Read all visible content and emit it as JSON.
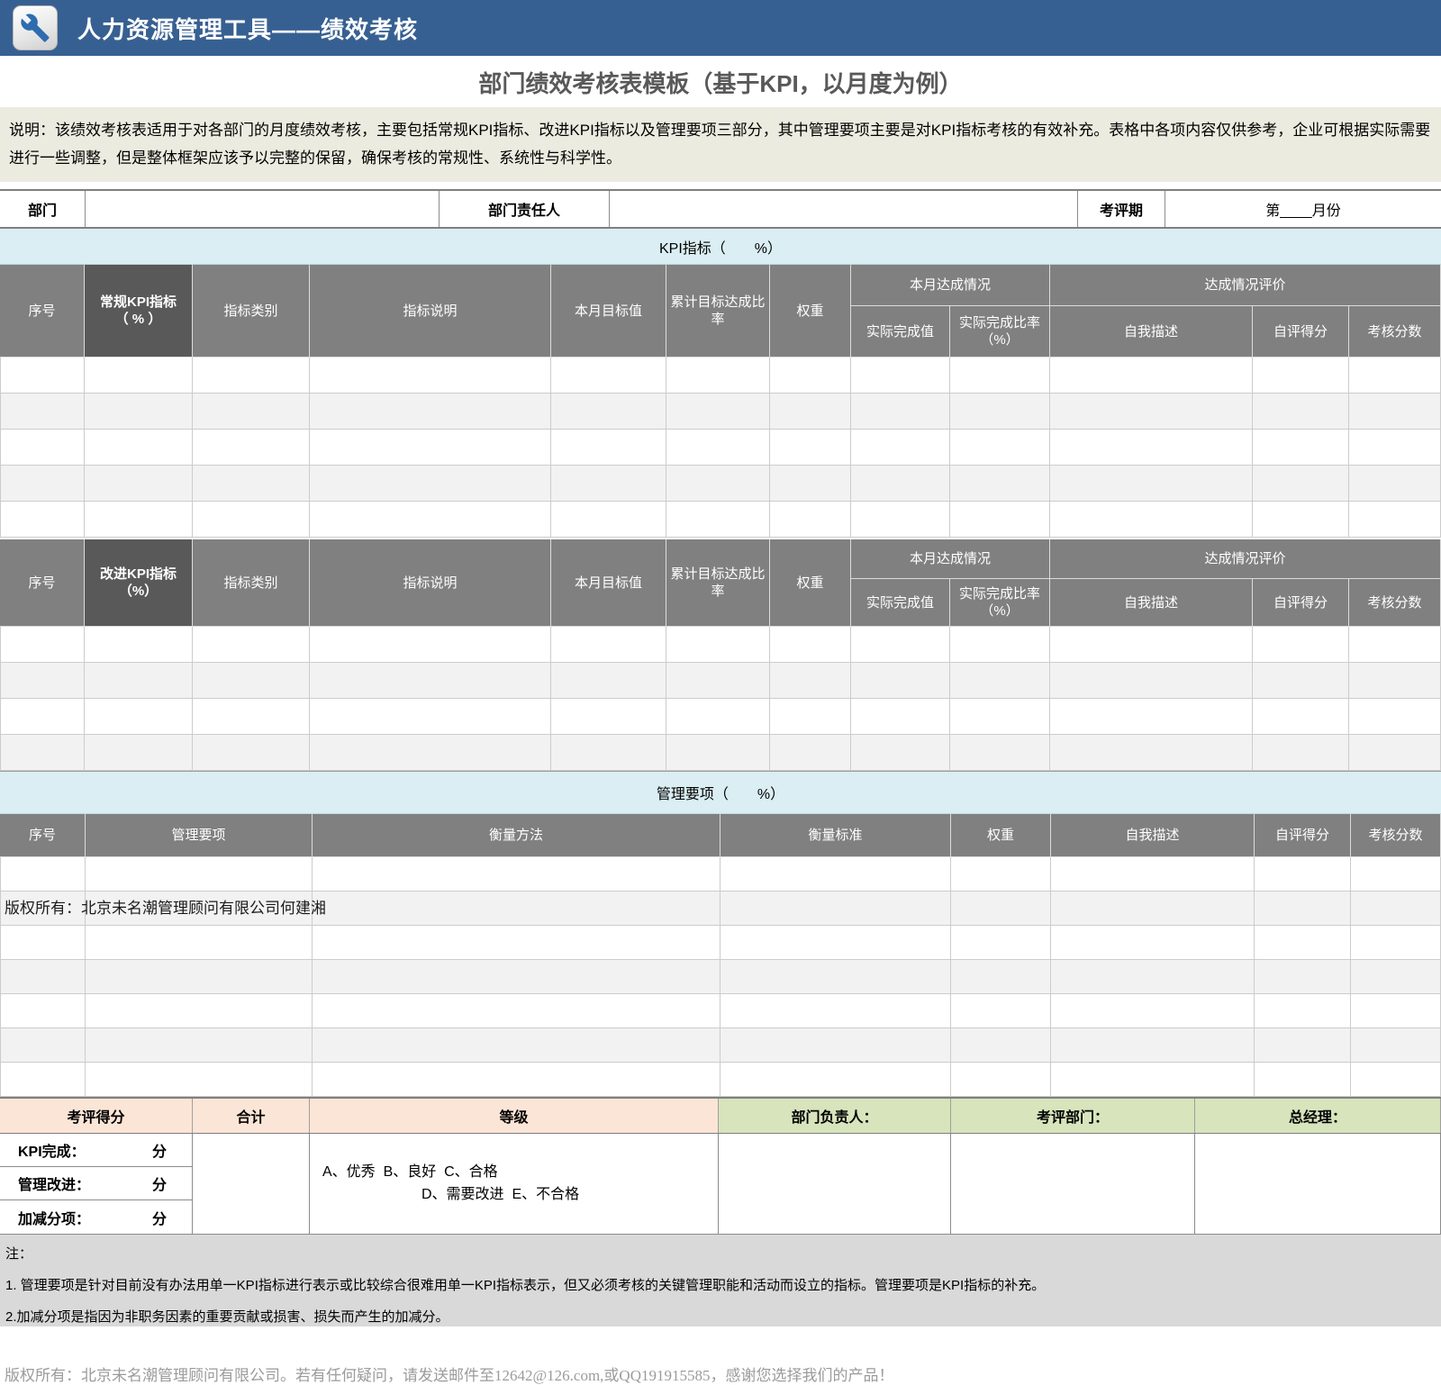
{
  "colors": {
    "topbar_bg": "#376092",
    "section_bg": "#daeef3",
    "header_bg": "#808080",
    "header_dark_bg": "#595959",
    "row_alt_bg": "#f2f2f2",
    "summary_left_bg": "#fbe5d6",
    "summary_right_bg": "#d7e4bc",
    "notes_bg": "#d9d9d9",
    "desc_bg": "#ecebe0"
  },
  "topbar": {
    "title": "人力资源管理工具——绩效考核",
    "icon": "wrench-icon"
  },
  "doc": {
    "title": "部门绩效考核表模板（基于KPI，以月度为例）",
    "description": "说明：该绩效考核表适用于对各部门的月度绩效考核，主要包括常规KPI指标、改进KPI指标以及管理要项三部分，其中管理要项主要是对KPI指标考核的有效补充。表格中各项内容仅供参考，企业可根据实际需要进行一些调整，但是整体框架应该予以完整的保留，确保考核的常规性、系统性与科学性。"
  },
  "info_row": {
    "dept_label": "部门",
    "dept_value": "",
    "owner_label": "部门责任人",
    "owner_value": "",
    "period_label": "考评期",
    "period_value": "第____月份"
  },
  "kpi_section": {
    "title": "KPI指标（　　%）"
  },
  "kpi_headers": {
    "seq": "序号",
    "category": "指标类别",
    "description": "指标说明",
    "monthly_target": "本月目标值",
    "cumulative_rate": "累计目标达成比率",
    "weight": "权重",
    "month_group": "本月达成情况",
    "actual_value": "实际完成值",
    "actual_rate": "实际完成比率（%）",
    "eval_group": "达成情况评价",
    "self_desc": "自我描述",
    "self_score": "自评得分",
    "review_score": "考核分数"
  },
  "kpi_table_1": {
    "name": "常规KPI指标",
    "pct": "（ % ）",
    "empty_rows": 5
  },
  "kpi_table_2": {
    "name": "改进KPI指标",
    "pct": "（%）",
    "empty_rows": 4
  },
  "mgmt_section": {
    "title": "管理要项（　　%）"
  },
  "mgmt_headers": {
    "seq": "序号",
    "item": "管理要项",
    "method": "衡量方法",
    "standard": "衡量标准",
    "weight": "权重",
    "self_desc": "自我描述",
    "self_score": "自评得分",
    "review_score": "考核分数"
  },
  "mgmt_table": {
    "empty_rows": 7
  },
  "watermark": "版权所有：北京未名潮管理顾问有限公司何建湘",
  "summary": {
    "score_header": "考评得分",
    "total_header": "合计",
    "grade_header": "等级",
    "dept_head_label": "部门负责人：",
    "review_dept_label": "考评部门：",
    "gm_label": "总经理：",
    "score_rows": [
      {
        "label": "KPI完成：",
        "unit": "分"
      },
      {
        "label": "管理改进：",
        "unit": "分"
      },
      {
        "label": "加减分项：",
        "unit": "分"
      }
    ],
    "grade_lines": [
      "A、优秀  B、良好  C、合格",
      "D、需要改进  E、不合格"
    ]
  },
  "notes": {
    "title": "注：",
    "items": [
      "1. 管理要项是针对目前没有办法用单一KPI指标进行表示或比较综合很难用单一KPI指标表示，但又必须考核的关键管理职能和活动而设立的指标。管理要项是KPI指标的补充。",
      "2.加减分项是指因为非职务因素的重要贡献或损害、损失而产生的加减分。"
    ]
  },
  "footer": "版权所有：北京未名潮管理顾问有限公司。若有任何疑问，请发送邮件至12642@126.com,或QQ191915585，感谢您选择我们的产品！"
}
